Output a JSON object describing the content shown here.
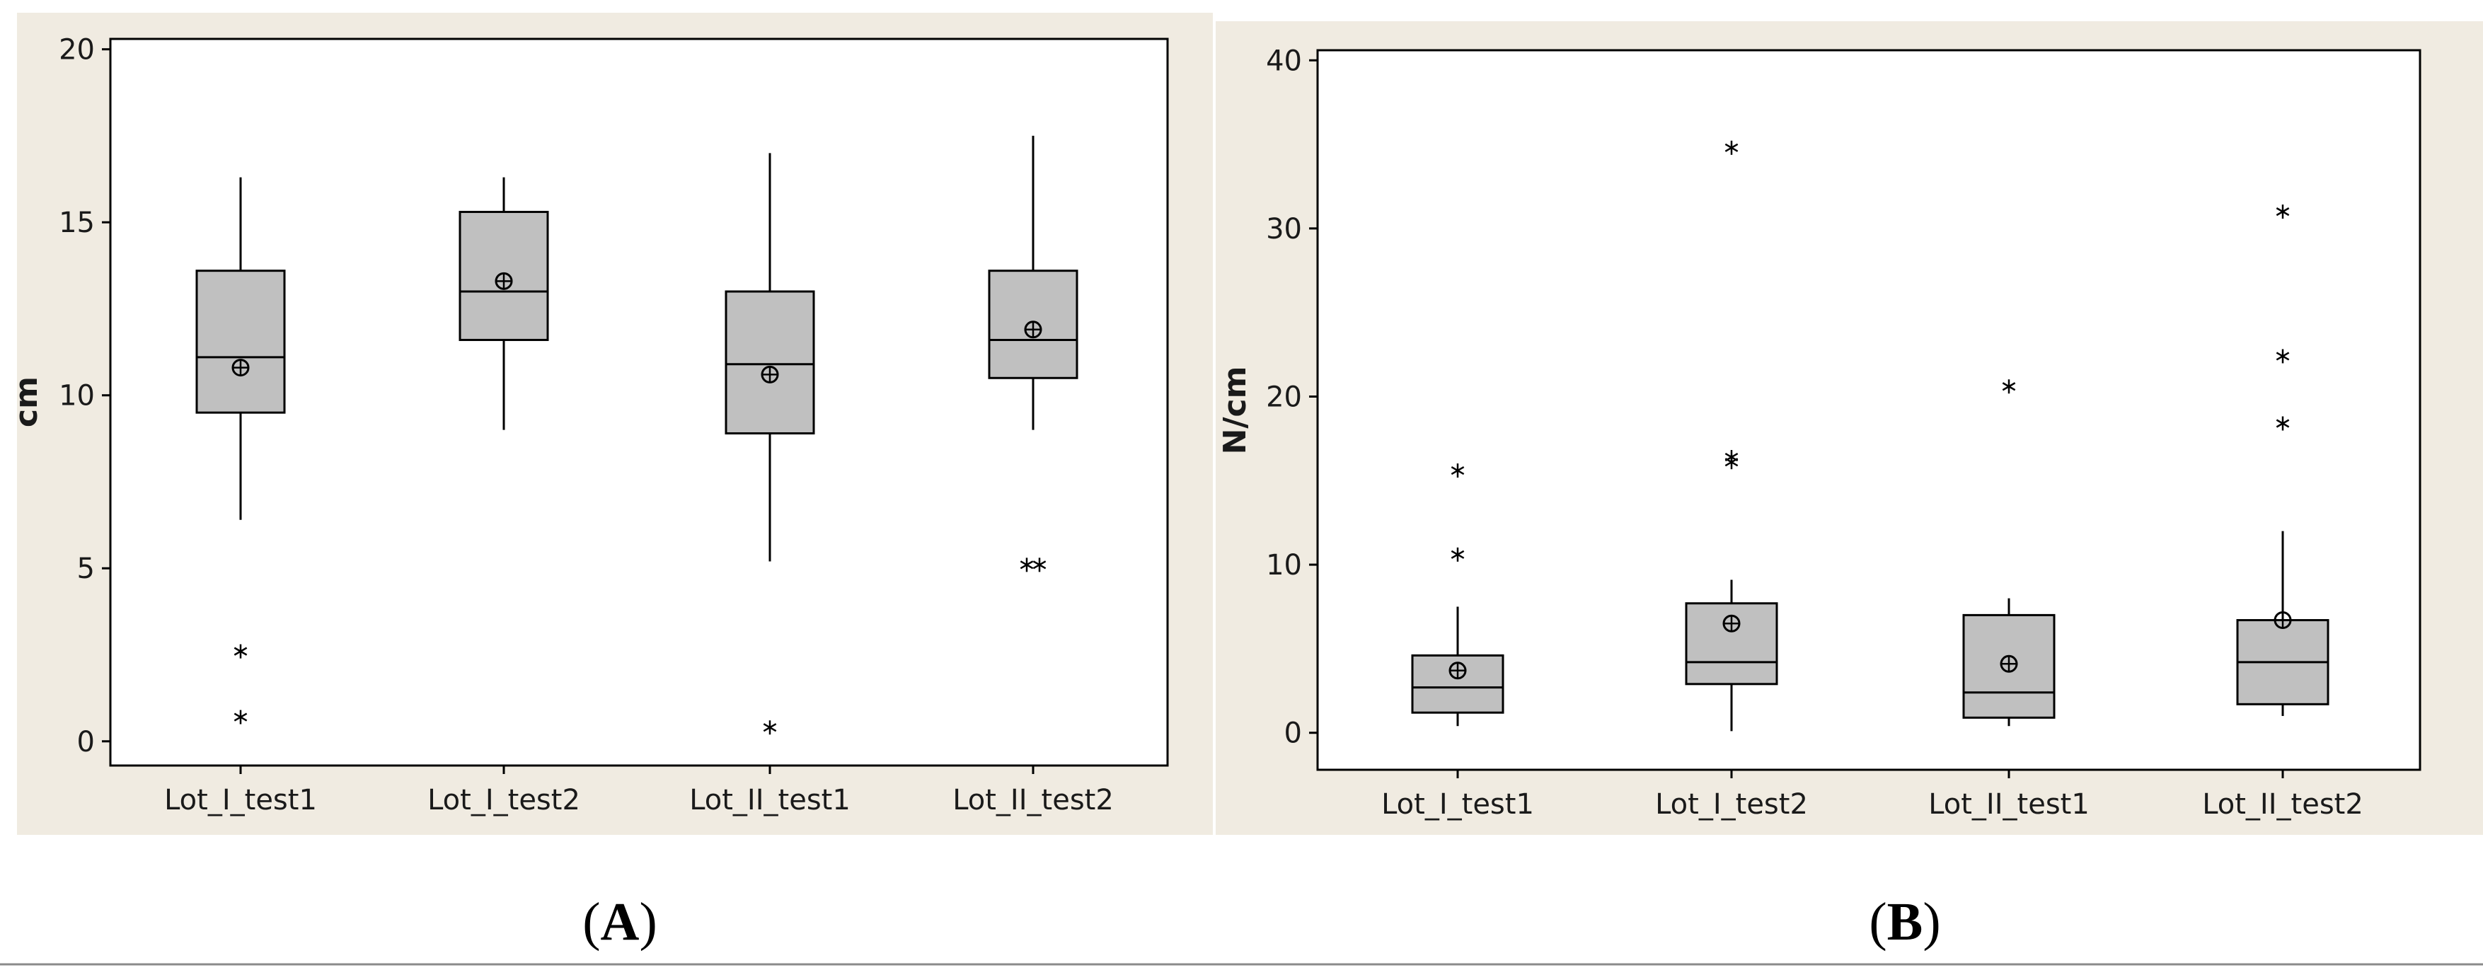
{
  "chart_data": [
    {
      "type": "boxplot",
      "panel_label": "A",
      "ylabel": "cm",
      "xlabel": "",
      "ylim": [
        -0.7,
        20.3
      ],
      "yticks": [
        0,
        5,
        10,
        15,
        20
      ],
      "categories": [
        "Lot_I_test1",
        "Lot_I_test2",
        "Lot_II_test1",
        "Lot_II_test2"
      ],
      "boxes": [
        {
          "category": "Lot_I_test1",
          "q1": 9.5,
          "median": 11.1,
          "q3": 13.6,
          "whisker_low": 6.4,
          "whisker_high": 16.3,
          "mean": 10.8,
          "outliers": [
            2.6,
            0.7
          ]
        },
        {
          "category": "Lot_I_test2",
          "q1": 11.6,
          "median": 13.0,
          "q3": 15.3,
          "whisker_low": 9.0,
          "whisker_high": 16.3,
          "mean": 13.3,
          "outliers": []
        },
        {
          "category": "Lot_II_test1",
          "q1": 8.9,
          "median": 10.9,
          "q3": 13.0,
          "whisker_low": 5.2,
          "whisker_high": 17.0,
          "mean": 10.6,
          "outliers": [
            0.4
          ]
        },
        {
          "category": "Lot_II_test2",
          "q1": 10.5,
          "median": 11.6,
          "q3": 13.6,
          "whisker_low": 9.0,
          "whisker_high": 17.5,
          "mean": 11.9,
          "outliers": [
            5.1,
            5.1
          ]
        }
      ]
    },
    {
      "type": "boxplot",
      "panel_label": "B",
      "ylabel": "N/cm",
      "xlabel": "",
      "ylim": [
        -2.2,
        40.6
      ],
      "yticks": [
        0,
        10,
        20,
        30,
        40
      ],
      "categories": [
        "Lot_I_test1",
        "Lot_I_test2",
        "Lot_II_test1",
        "Lot_II_test2"
      ],
      "boxes": [
        {
          "category": "Lot_I_test1",
          "q1": 1.2,
          "median": 2.7,
          "q3": 4.6,
          "whisker_low": 0.4,
          "whisker_high": 7.5,
          "mean": 3.7,
          "outliers": [
            15.6,
            10.6
          ]
        },
        {
          "category": "Lot_I_test2",
          "q1": 2.9,
          "median": 4.2,
          "q3": 7.7,
          "whisker_low": 0.1,
          "whisker_high": 9.1,
          "mean": 6.5,
          "outliers": [
            34.8,
            16.4,
            16.1
          ]
        },
        {
          "category": "Lot_II_test1",
          "q1": 0.9,
          "median": 2.4,
          "q3": 7.0,
          "whisker_low": 0.4,
          "whisker_high": 8.0,
          "mean": 4.1,
          "outliers": [
            20.6
          ]
        },
        {
          "category": "Lot_II_test2",
          "q1": 1.7,
          "median": 4.2,
          "q3": 6.7,
          "whisker_low": 1.0,
          "whisker_high": 12.0,
          "mean": 6.7,
          "outliers": [
            31.0,
            22.4,
            18.4
          ]
        }
      ]
    }
  ],
  "colors": {
    "panel_background": "#f0ebe1",
    "plot_background": "#ffffff",
    "box_fill": "#c0c0c0",
    "line": "#000000"
  }
}
